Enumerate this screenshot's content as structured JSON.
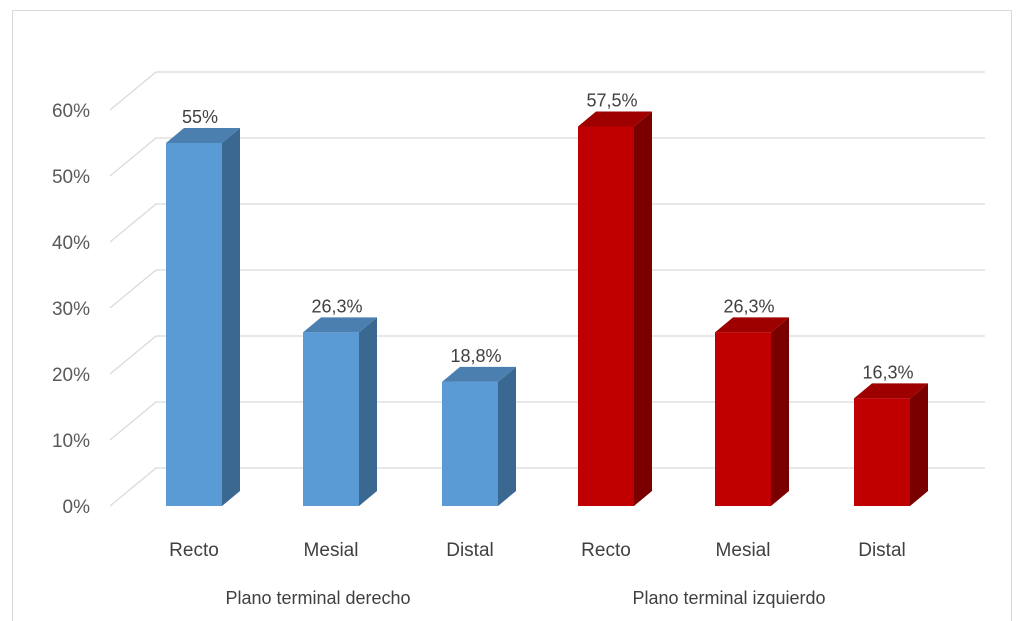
{
  "chart_data": {
    "type": "bar",
    "style": "3d-column",
    "y_ticks": [
      "0%",
      "10%",
      "20%",
      "30%",
      "40%",
      "50%",
      "60%"
    ],
    "ylim": [
      0,
      60
    ],
    "grid": true,
    "groups": [
      {
        "label": "Plano terminal derecho",
        "color": "#5b9bd5",
        "side_color": "#3a6891",
        "top_color": "#4a7fb0",
        "categories": [
          "Recto",
          "Mesial",
          "Distal"
        ],
        "values": [
          55,
          26.3,
          18.8
        ],
        "data_labels": [
          "55%",
          "26,3%",
          "18,8%"
        ]
      },
      {
        "label": "Plano terminal izquierdo",
        "color": "#c00000",
        "side_color": "#7a0000",
        "top_color": "#9e0000",
        "categories": [
          "Recto",
          "Mesial",
          "Distal"
        ],
        "values": [
          57.5,
          26.3,
          16.3
        ],
        "data_labels": [
          "57,5%",
          "26,3%",
          "16,3%"
        ]
      }
    ]
  }
}
